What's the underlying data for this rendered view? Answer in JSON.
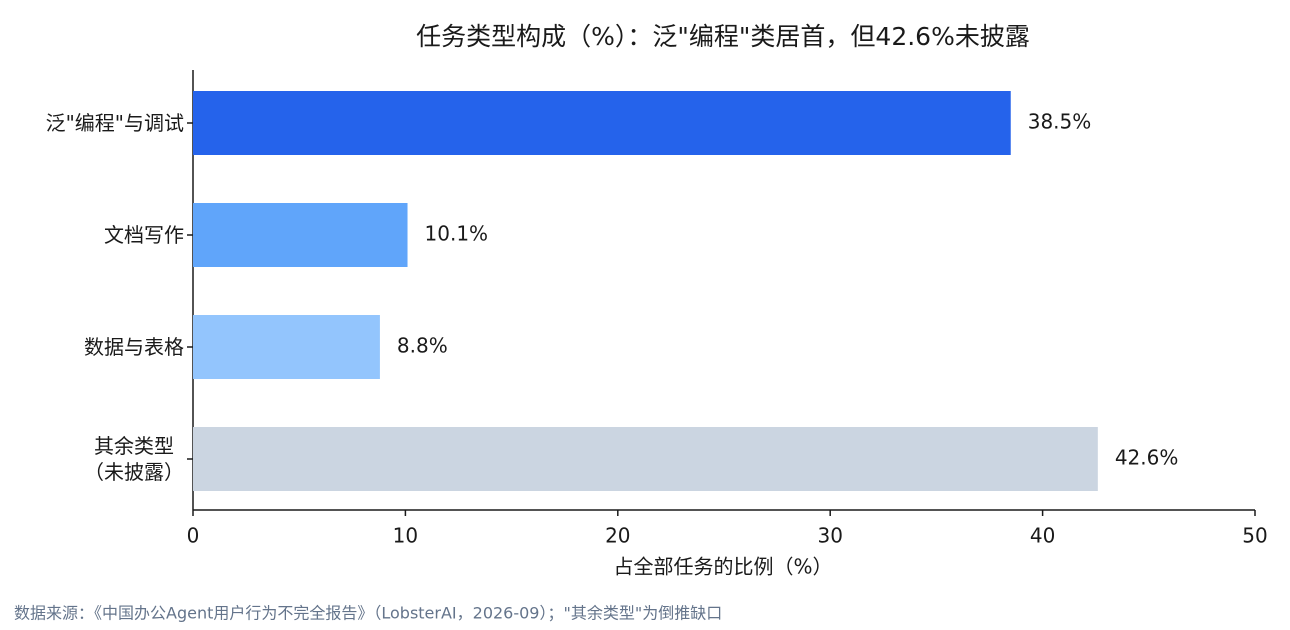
{
  "chart_data": {
    "type": "barh",
    "title": "任务类型构成（%）：泛\"编程\"类居首，但42.6%未披露",
    "categories": [
      "泛\"编程\"与调试",
      "文档写作",
      "数据与表格",
      "其余类型\n（未披露）"
    ],
    "values": [
      38.5,
      10.1,
      8.8,
      42.6
    ],
    "value_labels": [
      "38.5%",
      "10.1%",
      "8.8%",
      "42.6%"
    ],
    "colors": [
      "#2563eb",
      "#60a5fa",
      "#93c5fd",
      "#cbd5e1"
    ],
    "xlim": [
      0,
      50
    ],
    "xticks": [
      0,
      10,
      20,
      30,
      40,
      50
    ],
    "xlabel": "占全部任务的比例（%）",
    "source": "数据来源：《中国办公Agent用户行为不完全报告》（LobsterAI，2026-09）；\"其余类型\"为倒推缺口"
  }
}
